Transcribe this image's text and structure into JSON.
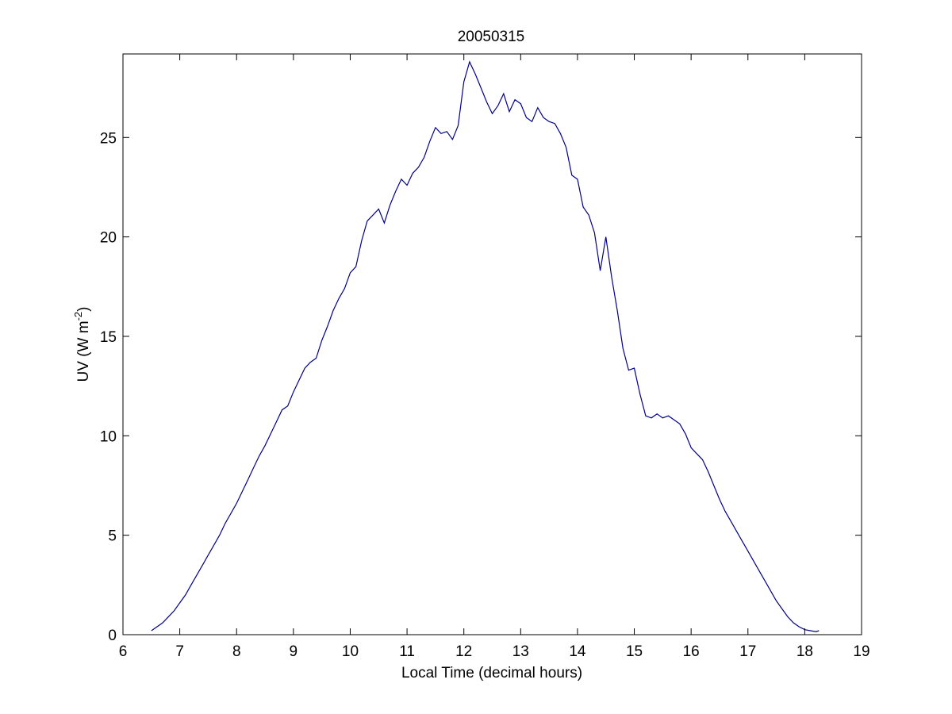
{
  "chart_data": {
    "type": "line",
    "title": "20050315",
    "xlabel": "Local Time (decimal hours)",
    "ylabel": {
      "prefix": "UV (W m",
      "superscript": "-2",
      "suffix": ")"
    },
    "xlim": [
      6,
      19
    ],
    "ylim": [
      0,
      29.2
    ],
    "xticks": [
      6,
      7,
      8,
      9,
      10,
      11,
      12,
      13,
      14,
      15,
      16,
      17,
      18,
      19
    ],
    "yticks": [
      0,
      5,
      10,
      15,
      20,
      25
    ],
    "grid": false,
    "line_color": "#00008b",
    "series": [
      {
        "x": [
          6.5,
          6.6,
          6.7,
          6.8,
          6.9,
          7.0,
          7.1,
          7.2,
          7.3,
          7.4,
          7.5,
          7.6,
          7.7,
          7.8,
          7.9,
          8.0,
          8.1,
          8.2,
          8.3,
          8.4,
          8.5,
          8.6,
          8.7,
          8.8,
          8.9,
          9.0,
          9.1,
          9.2,
          9.3,
          9.4,
          9.5,
          9.6,
          9.7,
          9.8,
          9.9,
          10.0,
          10.1,
          10.2,
          10.3,
          10.4,
          10.5,
          10.6,
          10.7,
          10.8,
          10.9,
          11.0,
          11.1,
          11.2,
          11.3,
          11.4,
          11.5,
          11.6,
          11.7,
          11.8,
          11.9,
          12.0,
          12.1,
          12.2,
          12.3,
          12.4,
          12.5,
          12.6,
          12.7,
          12.8,
          12.9,
          13.0,
          13.1,
          13.2,
          13.3,
          13.4,
          13.5,
          13.6,
          13.7,
          13.8,
          13.9,
          14.0,
          14.1,
          14.2,
          14.3,
          14.4,
          14.5,
          14.6,
          14.7,
          14.8,
          14.9,
          15.0,
          15.1,
          15.2,
          15.3,
          15.4,
          15.5,
          15.6,
          15.7,
          15.8,
          15.9,
          16.0,
          16.1,
          16.2,
          16.3,
          16.4,
          16.5,
          16.6,
          16.7,
          16.8,
          16.9,
          17.0,
          17.1,
          17.2,
          17.3,
          17.4,
          17.5,
          17.6,
          17.7,
          17.8,
          17.9,
          18.0,
          18.1,
          18.2,
          18.25
        ],
        "y": [
          0.2,
          0.4,
          0.6,
          0.9,
          1.2,
          1.6,
          2.0,
          2.5,
          3.0,
          3.5,
          4.0,
          4.5,
          5.0,
          5.6,
          6.1,
          6.6,
          7.2,
          7.8,
          8.4,
          9.0,
          9.5,
          10.1,
          10.7,
          11.3,
          11.5,
          12.2,
          12.8,
          13.4,
          13.7,
          13.9,
          14.8,
          15.5,
          16.3,
          16.9,
          17.4,
          18.2,
          18.5,
          19.8,
          20.8,
          21.1,
          21.4,
          20.7,
          21.6,
          22.3,
          22.9,
          22.6,
          23.2,
          23.5,
          24.0,
          24.8,
          25.5,
          25.2,
          25.3,
          24.9,
          25.6,
          27.8,
          28.8,
          28.2,
          27.5,
          26.8,
          26.2,
          26.6,
          27.2,
          26.3,
          26.9,
          26.7,
          26.0,
          25.8,
          26.5,
          26.0,
          25.8,
          25.7,
          25.2,
          24.5,
          23.1,
          22.9,
          21.5,
          21.1,
          20.2,
          18.3,
          20.0,
          18.0,
          16.3,
          14.4,
          13.3,
          13.4,
          12.1,
          11.0,
          10.9,
          11.1,
          10.9,
          11.0,
          10.8,
          10.6,
          10.1,
          9.4,
          9.1,
          8.8,
          8.2,
          7.5,
          6.8,
          6.2,
          5.7,
          5.2,
          4.7,
          4.2,
          3.7,
          3.2,
          2.7,
          2.2,
          1.7,
          1.3,
          0.9,
          0.6,
          0.4,
          0.25,
          0.2,
          0.15,
          0.2
        ]
      }
    ]
  }
}
